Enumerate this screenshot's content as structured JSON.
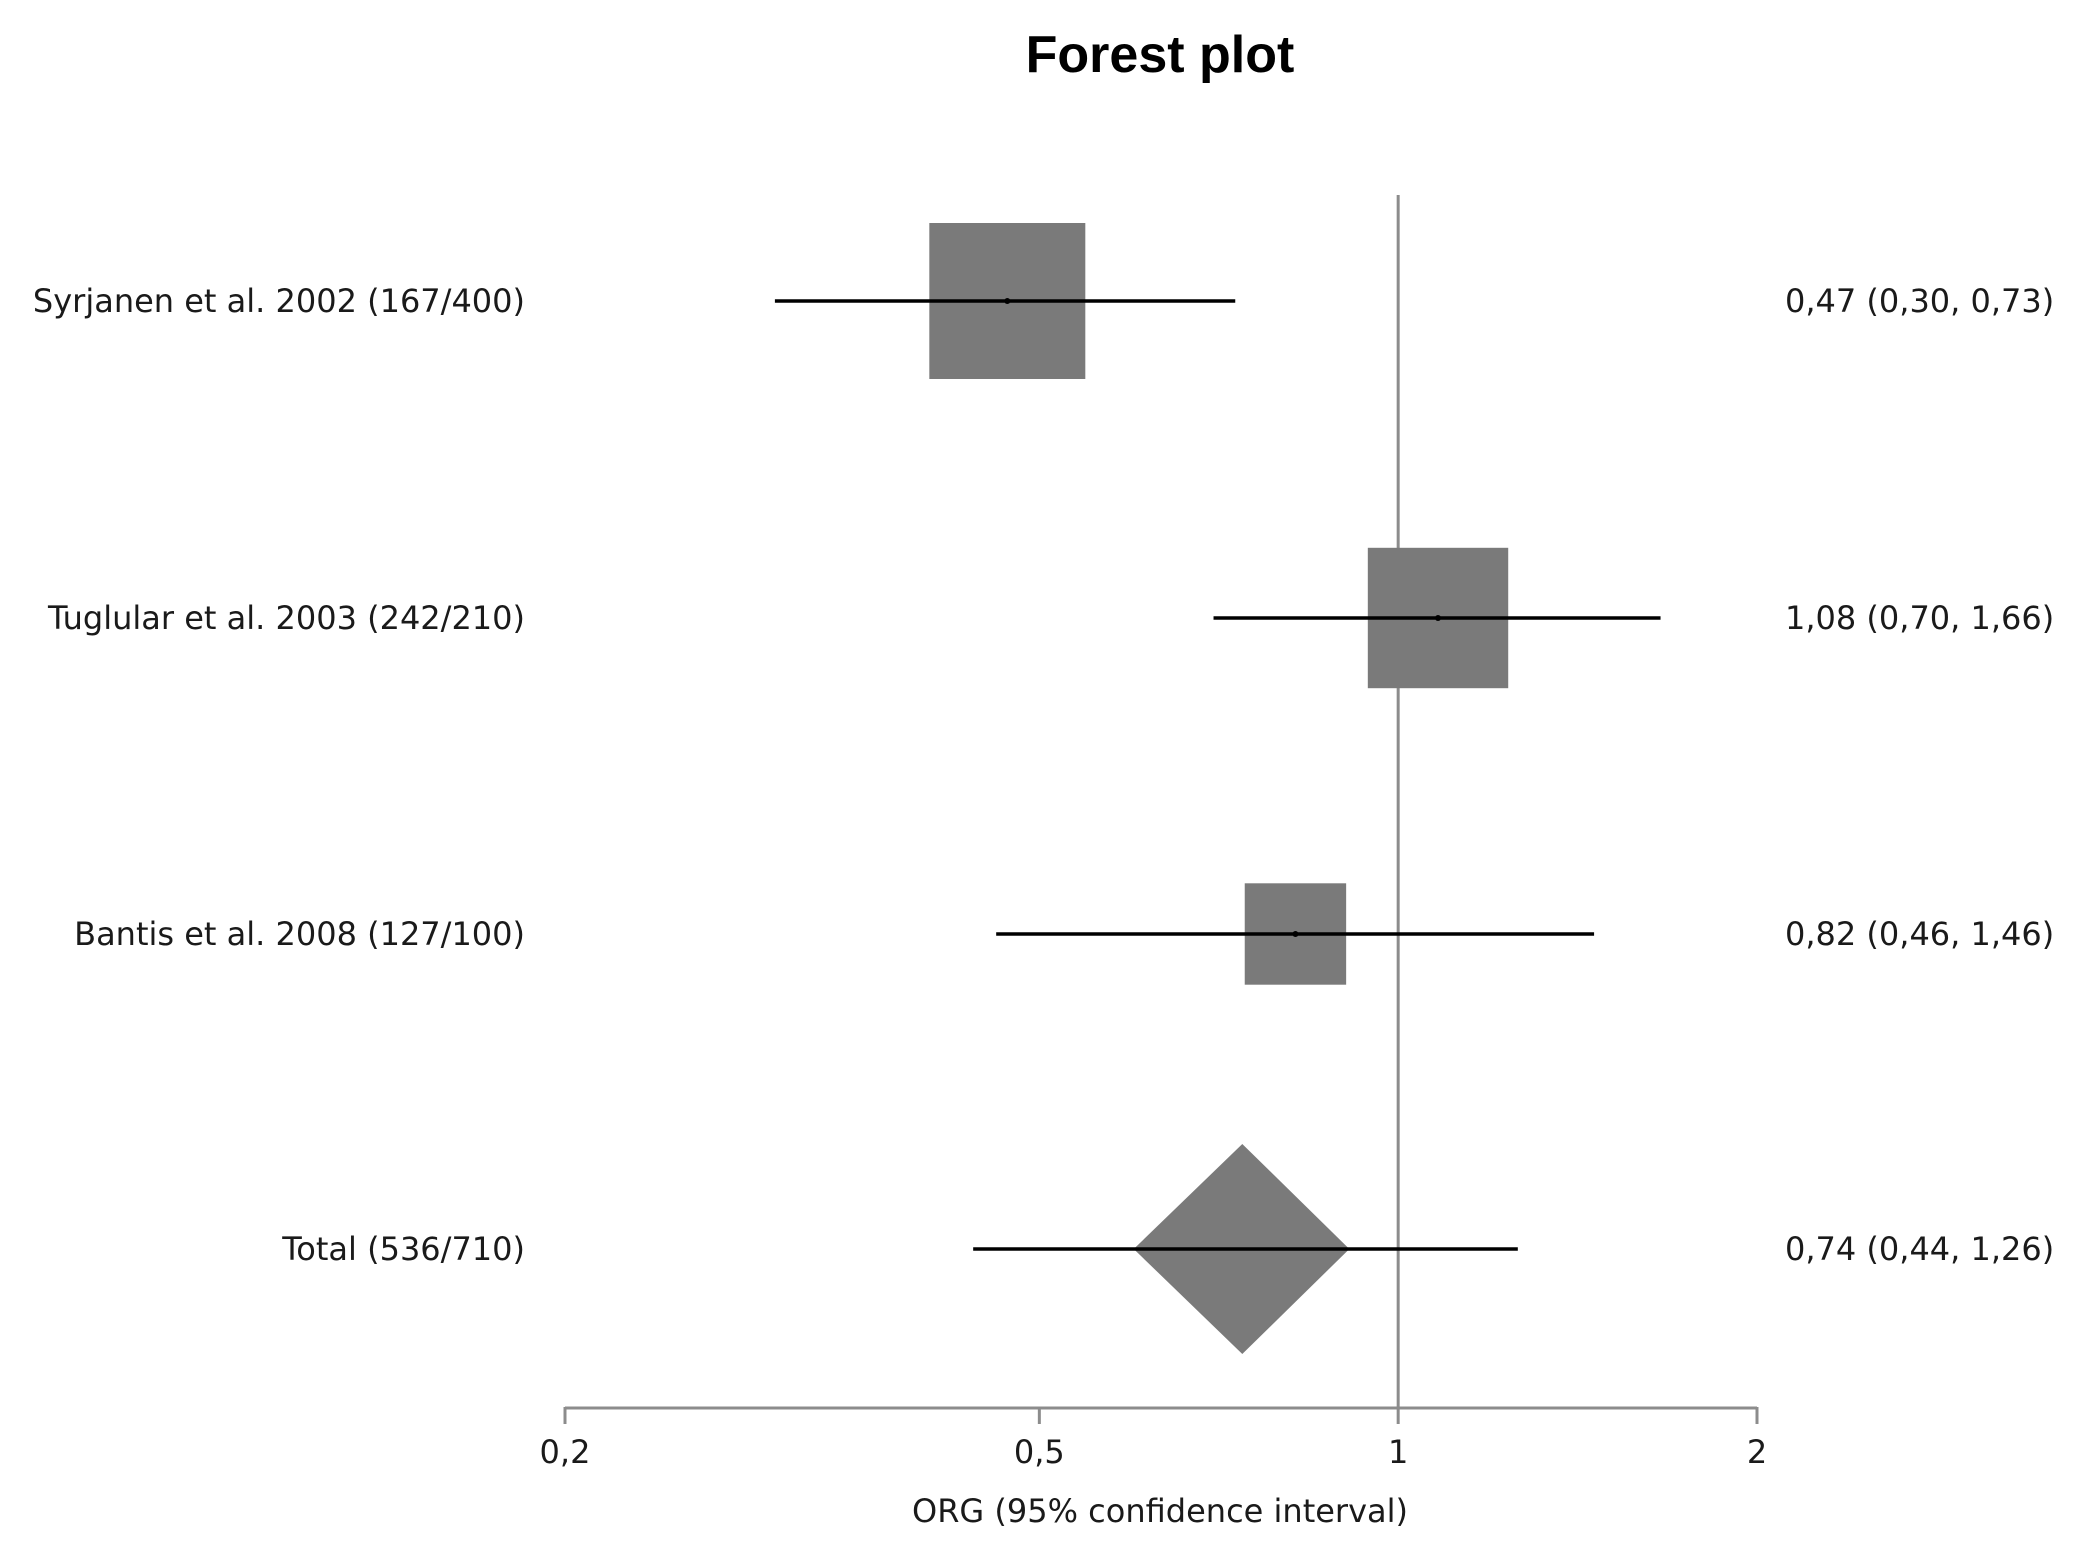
{
  "chart_data": {
    "type": "forest",
    "title": "Forest plot",
    "xlabel": "ORG (95% confidence interval)",
    "xscale": "log",
    "xlim": [
      0.2,
      2
    ],
    "xticks": [
      0.2,
      0.5,
      1,
      2
    ],
    "xtick_labels": [
      "0,2",
      "0,5",
      "1",
      "2"
    ],
    "reference_line": 1,
    "colors": {
      "marker": "#7a7a7a",
      "line": "#000000",
      "reference": "#8c8c8c",
      "axis": "#8c8c8c"
    },
    "studies": [
      {
        "label": "Syrjanen et al. 2002 (167/400)",
        "estimate": 0.47,
        "lower": 0.3,
        "upper": 0.73,
        "summary_text": "0,47 (0,30, 0,73)",
        "weight": 1.0,
        "marker": "square"
      },
      {
        "label": "Tuglular et al. 2003 (242/210)",
        "estimate": 1.08,
        "lower": 0.7,
        "upper": 1.66,
        "summary_text": "1,08 (0,70, 1,66)",
        "weight": 0.9,
        "marker": "square"
      },
      {
        "label": "Bantis et al. 2008 (127/100)",
        "estimate": 0.82,
        "lower": 0.46,
        "upper": 1.46,
        "summary_text": "0,82 (0,46, 1,46)",
        "weight": 0.65,
        "marker": "square"
      },
      {
        "label": "Total (536/710)",
        "estimate": 0.74,
        "lower": 0.44,
        "upper": 1.26,
        "summary_text": "0,74 (0,44, 1,26)",
        "weight": 1.0,
        "marker": "diamond",
        "diamond_lower": 0.6,
        "diamond_upper": 0.91
      }
    ]
  }
}
